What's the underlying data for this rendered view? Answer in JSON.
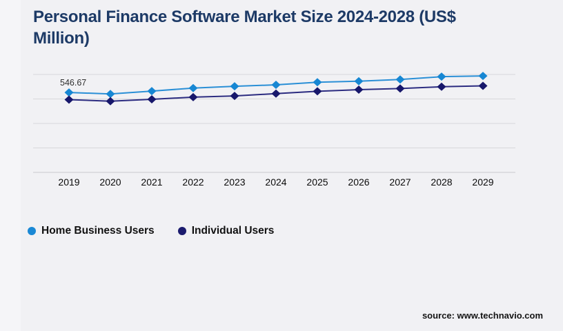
{
  "page": {
    "background": "#f1f1f4",
    "source_text": "source: www.technavio.com"
  },
  "title": "Personal Finance Software Market Size 2024-2028 (US$ Million)",
  "title_color": "#1d3a66",
  "legend": [
    {
      "label": "Home Business Users",
      "color": "#1a88d5"
    },
    {
      "label": "Individual Users",
      "color": "#1b1b6e"
    }
  ],
  "chart_data": {
    "type": "line",
    "title": "Personal Finance Software Market Size 2024-2028 (US$ Million)",
    "xlabel": "",
    "ylabel": "",
    "categories": [
      "2019",
      "2020",
      "2021",
      "2022",
      "2023",
      "2024",
      "2025",
      "2026",
      "2027",
      "2028",
      "2029"
    ],
    "series": [
      {
        "name": "Home Business Users",
        "color": "#2a8fd6",
        "marker_color": "#1787d3",
        "values": [
          546.67,
          537,
          556,
          577,
          589,
          599,
          617,
          624,
          636,
          655,
          660
        ]
      },
      {
        "name": "Individual Users",
        "color": "#2b2b80",
        "marker_color": "#17176b",
        "values": [
          498,
          487,
          500,
          515,
          523,
          539,
          555,
          566,
          574,
          586,
          592
        ]
      }
    ],
    "annotation": {
      "text": "546.67",
      "series_index": 0,
      "point_index": 0
    },
    "ylim": [
      0,
      670
    ],
    "gridline_count": 5,
    "grid": true,
    "marker": "diamond",
    "legend_position": "bottom",
    "note": "Only the first Home Business Users point (546.67) is labeled in the source image; other values estimated from gridlines."
  },
  "chart_style": {
    "gridline_color": "#d8d8db",
    "axis_line_color": "#c9c9ce",
    "tick_label_color": "#0a0a0a",
    "annotation_color": "#2f2f2f"
  }
}
